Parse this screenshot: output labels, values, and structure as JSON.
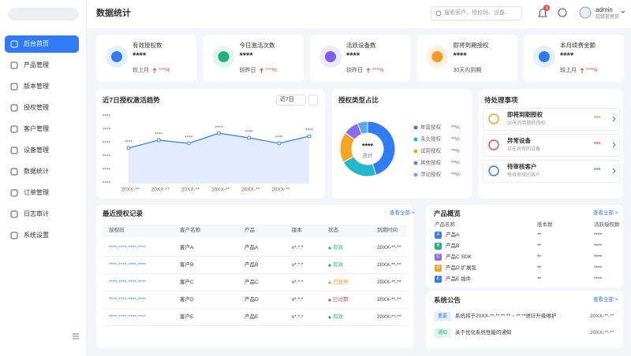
{
  "sidebar": {
    "menu": [
      "后台首页",
      "产品管理",
      "版本管理",
      "授权管理",
      "客户管理",
      "设备管理",
      "数据统计",
      "订单管理",
      "日志审计",
      "系统设置"
    ]
  },
  "header": {
    "title": "数据统计",
    "search_placeholder": "搜索客户、授权码、设备...",
    "badge": "3",
    "user": "admin",
    "role": "超级管理员"
  },
  "stat_cards": [
    {
      "label": "有效授权数",
      "value": "****",
      "note": "较上月",
      "change": "***%",
      "color": "#2f7cf6",
      "bg": "#e6effe"
    },
    {
      "label": "今日激活次数",
      "value": "****",
      "note": "较昨日",
      "change": "***%",
      "color": "#1fb07c",
      "bg": "#e2f6ee"
    },
    {
      "label": "活跃设备数",
      "value": "****",
      "note": "较昨日",
      "change": "***%",
      "color": "#7c5cf5",
      "bg": "#eee9fd"
    },
    {
      "label": "即将到期授权",
      "value": "****",
      "note": "30天内到期",
      "color": "#f59a23",
      "bg": "#fff0e0"
    },
    {
      "label": "本月续费金额",
      "value": "****",
      "note": "较上月",
      "change": "***%",
      "color": "#2f7cf6",
      "bg": "#e6effe"
    }
  ],
  "chart_data": [
    {
      "type": "line",
      "title": "近7日授权激活趋势",
      "period": "近7日",
      "categories": [
        "20XX-**",
        "20XX-**",
        "20XX-**",
        "20XX-**",
        "20XX-**",
        "20XX-**",
        null
      ],
      "values": [
        2.65,
        3.24,
        3.0,
        3.76,
        3.41,
        3.0,
        3.53
      ],
      "value_labels": [
        "****",
        "****",
        "****",
        "****",
        "****",
        "****",
        "****"
      ],
      "ylim": [
        0,
        5
      ],
      "yticks": [
        {
          "value": 0,
          "label": "****"
        },
        {
          "value": 1,
          "label": "****"
        },
        {
          "value": 2,
          "label": "****"
        },
        {
          "value": 3,
          "label": "****"
        },
        {
          "value": 4,
          "label": "****"
        },
        {
          "value": 5,
          "label": "****"
        }
      ],
      "color": "#3b82f6"
    },
    {
      "type": "pie",
      "title": "授权类型占比",
      "center_value": "****",
      "center_label": "总计",
      "categories": [
        "年度授权",
        "永久授权",
        "试用授权",
        "其他授权",
        "浮动授权"
      ],
      "values": [
        45,
        22,
        18,
        9,
        6
      ],
      "percent_labels": [
        "**%",
        "**%",
        "**%",
        "**%",
        "**%"
      ],
      "colors": [
        "#2f7cf6",
        "#22b8c9",
        "#f5a524",
        "#8b6cf0",
        "#5aa9f8"
      ]
    }
  ],
  "pending": {
    "title": "待处理事项",
    "items": [
      {
        "title": "即将到期授权",
        "desc": "30天内到期的授权",
        "count": "***",
        "color": "#f59a23"
      },
      {
        "title": "异常设备",
        "desc": "存在异常的设备",
        "count": "***",
        "color": "#e5484d"
      },
      {
        "title": "待审核客户",
        "desc": "等待审核的客户",
        "count": "***",
        "color": "#2f7cf6"
      }
    ]
  },
  "records": {
    "title": "最近授权记录",
    "link": "查看全部 >",
    "headers": [
      "授权码",
      "客户名称",
      "产品",
      "版本",
      "状态",
      "到期时间"
    ],
    "rows": [
      [
        "****-****-****-****",
        "客户A",
        "产品A",
        "v*.*.*",
        "有效",
        "20XX-**-**"
      ],
      [
        "****-****-****-****",
        "客户B",
        "产品B",
        "v*.*.*",
        "有效",
        "20XX-**-**"
      ],
      [
        "****-****-****-****",
        "客户C",
        "产品C",
        "v*.*.*",
        "已暂停",
        "20XX-**-**"
      ],
      [
        "****-****-****-****",
        "客户D",
        "产品D",
        "v*.*.*",
        "已过期",
        "20XX-**-**"
      ],
      [
        "****-****-****-****",
        "客户E",
        "产品E",
        "v*.*.*",
        "有效",
        "20XX-**-**"
      ]
    ],
    "status_colors": [
      "#1fb07c",
      "#1fb07c",
      "#f59a23",
      "#e5484d",
      "#1fb07c"
    ]
  },
  "products": {
    "title": "产品概览",
    "link": "查看全部 >",
    "headers": [
      "产品名称",
      "版本数",
      "活跃授权数"
    ],
    "rows": [
      [
        "A",
        "产品A",
        "**",
        "****"
      ],
      [
        "B",
        "产品B",
        "**",
        "****"
      ],
      [
        "C",
        "产品C SDK",
        "**",
        "****"
      ],
      [
        "D",
        "产品D 扩展包",
        "**",
        "****"
      ],
      [
        "E",
        "产品E 插件",
        "**",
        "****"
      ]
    ],
    "colors": [
      "#2f7cf6",
      "#1fb07c",
      "#8b6cf0",
      "#f5a524",
      "#2f7cf6"
    ]
  },
  "notices": {
    "title": "系统公告",
    "link": "查看全部 >",
    "items": [
      {
        "tag": "重要",
        "text": "系统将于20XX-**-** **:** ~ **:**进行升级维护",
        "date": "20XX-**-**"
      },
      {
        "tag": "通知",
        "text": "关于优化系统性能的通知",
        "date": "20XX-**-**"
      }
    ]
  }
}
